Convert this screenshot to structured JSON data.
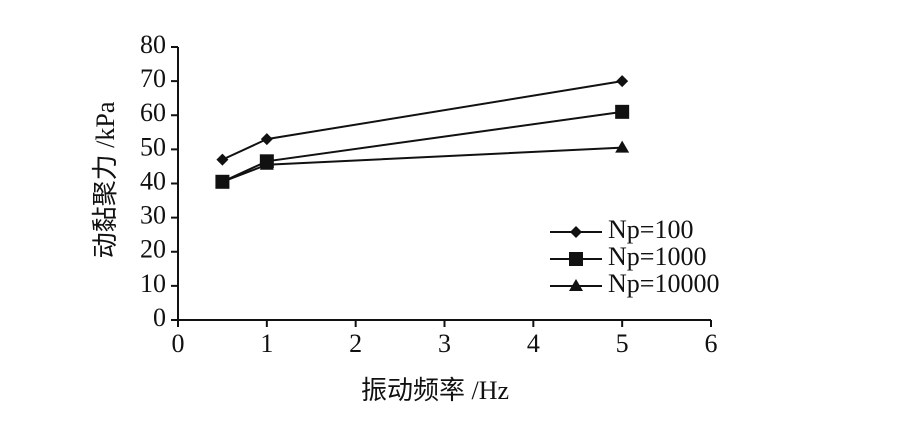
{
  "chart_data": {
    "type": "line",
    "x_label": "振动频率 /Hz",
    "y_label": "动黏聚力 /kPa",
    "xlim": [
      0,
      6
    ],
    "xticks": [
      0,
      1,
      2,
      3,
      4,
      5,
      6
    ],
    "ylim": [
      0,
      80
    ],
    "yticks": [
      0,
      10,
      20,
      30,
      40,
      50,
      60,
      70,
      80
    ],
    "x": [
      0.5,
      1,
      5
    ],
    "series": [
      {
        "name": "Np=100",
        "color": "#111111",
        "marker": "diamond",
        "values": [
          47,
          53,
          70
        ]
      },
      {
        "name": "Np=1000",
        "color": "#111111",
        "marker": "square",
        "values": [
          40.5,
          46.5,
          61
        ]
      },
      {
        "name": "Np=10000",
        "color": "#111111",
        "marker": "triangle",
        "values": [
          40.5,
          45.5,
          50.5
        ]
      }
    ]
  }
}
